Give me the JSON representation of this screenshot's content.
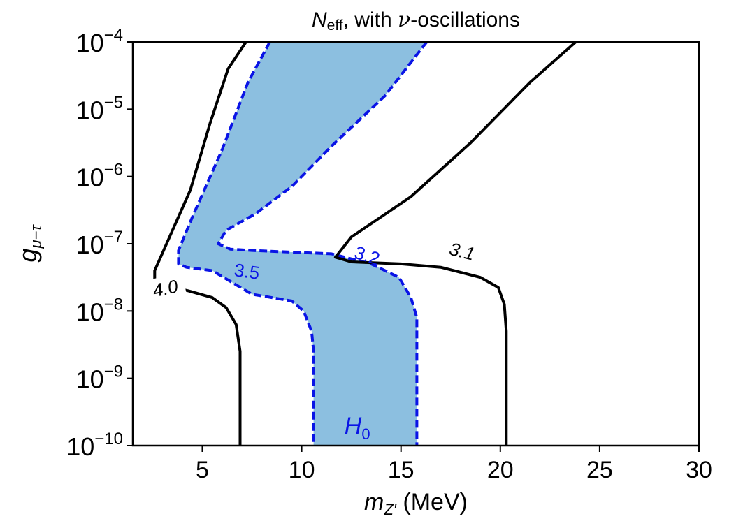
{
  "chart_data": {
    "type": "contour",
    "title": {
      "main": "N",
      "sub": "eff",
      "rest": ", with ",
      "greek": "ν",
      "tail": "-oscillations"
    },
    "xlabel": {
      "main": "m",
      "sub": "Z′",
      "rest": " (MeV)"
    },
    "ylabel": {
      "main": "g",
      "sub": "μ−τ"
    },
    "xlim": [
      1.5,
      30
    ],
    "ylim_log10": [
      -10,
      -4
    ],
    "y_scale": "log",
    "x_ticks": [
      5,
      10,
      15,
      20,
      25,
      30
    ],
    "x_tick_labels": [
      "5",
      "10",
      "15",
      "20",
      "25",
      "30"
    ],
    "y_ticks_log10": [
      -4,
      -5,
      -6,
      -7,
      -8,
      -9,
      -10
    ],
    "y_tick_labels": [
      {
        "base": "10",
        "exp": "−4"
      },
      {
        "base": "10",
        "exp": "−5"
      },
      {
        "base": "10",
        "exp": "−6"
      },
      {
        "base": "10",
        "exp": "−7"
      },
      {
        "base": "10",
        "exp": "−8"
      },
      {
        "base": "10",
        "exp": "−9"
      },
      {
        "base": "10",
        "exp": "−10"
      }
    ],
    "colors": {
      "black": "#000000",
      "blue": "#0a14e6",
      "fill": "#8cbfe0"
    },
    "region": {
      "label_main": "H",
      "label_sub": "0",
      "label_at": {
        "x": 12.8,
        "y": -9.7
      },
      "boundary": [
        [
          10.6,
          -10
        ],
        [
          10.6,
          -8.6
        ],
        [
          10.5,
          -8.3
        ],
        [
          10.1,
          -8.0
        ],
        [
          9.5,
          -7.85
        ],
        [
          7.5,
          -7.75
        ],
        [
          5.5,
          -7.4
        ],
        [
          4.2,
          -7.35
        ],
        [
          3.8,
          -7.3
        ],
        [
          3.8,
          -7.1
        ],
        [
          4.5,
          -6.6
        ],
        [
          6.0,
          -5.6
        ],
        [
          7.3,
          -4.6
        ],
        [
          8.4,
          -4
        ],
        [
          16.3,
          -4
        ],
        [
          14.2,
          -4.8
        ],
        [
          11.5,
          -5.55
        ],
        [
          9.5,
          -6.15
        ],
        [
          7.7,
          -6.55
        ],
        [
          6.2,
          -6.8
        ],
        [
          5.8,
          -7.0
        ],
        [
          6.4,
          -7.08
        ],
        [
          7.5,
          -7.1
        ],
        [
          11.5,
          -7.15
        ],
        [
          13.5,
          -7.3
        ],
        [
          14.9,
          -7.5
        ],
        [
          15.5,
          -7.8
        ],
        [
          15.8,
          -8.1
        ],
        [
          15.8,
          -10
        ]
      ]
    },
    "contours": [
      {
        "label": "3.2",
        "color": "blue",
        "dashed": true,
        "label_at": {
          "x": 13.2,
          "y": -7.16
        },
        "label_rotate": 18,
        "points": [
          [
            16.3,
            -4
          ],
          [
            14.2,
            -4.8
          ],
          [
            11.5,
            -5.55
          ],
          [
            9.5,
            -6.15
          ],
          [
            7.7,
            -6.55
          ],
          [
            6.2,
            -6.8
          ],
          [
            5.8,
            -7.0
          ],
          [
            6.4,
            -7.08
          ],
          [
            7.5,
            -7.1
          ],
          [
            11.5,
            -7.15
          ],
          [
            13.5,
            -7.3
          ],
          [
            14.9,
            -7.5
          ],
          [
            15.5,
            -7.8
          ],
          [
            15.8,
            -8.1
          ],
          [
            15.8,
            -10
          ]
        ]
      },
      {
        "label": "3.5",
        "color": "blue",
        "dashed": true,
        "label_at": {
          "x": 7.2,
          "y": -7.4
        },
        "label_rotate": 8,
        "points": [
          [
            8.4,
            -4
          ],
          [
            7.3,
            -4.6
          ],
          [
            6.0,
            -5.6
          ],
          [
            4.5,
            -6.6
          ],
          [
            3.8,
            -7.1
          ],
          [
            3.8,
            -7.3
          ],
          [
            4.2,
            -7.35
          ],
          [
            5.5,
            -7.4
          ],
          [
            7.5,
            -7.75
          ],
          [
            9.5,
            -7.85
          ],
          [
            10.1,
            -8.0
          ],
          [
            10.5,
            -8.3
          ],
          [
            10.6,
            -8.6
          ],
          [
            10.6,
            -10
          ]
        ]
      },
      {
        "label": "4.0",
        "color": "black",
        "dashed": false,
        "label_at": {
          "x": 3.2,
          "y": -7.65
        },
        "label_rotate": -12,
        "points": [
          [
            7.2,
            -4
          ],
          [
            6.3,
            -4.4
          ],
          [
            5.4,
            -5.2
          ],
          [
            4.4,
            -6.2
          ],
          [
            3.2,
            -7.0
          ],
          [
            2.6,
            -7.4
          ],
          [
            2.6,
            -7.55
          ],
          [
            2.8,
            -7.6
          ],
          [
            4.3,
            -7.7
          ],
          [
            5.5,
            -7.8
          ],
          [
            6.2,
            -7.95
          ],
          [
            6.7,
            -8.2
          ],
          [
            6.9,
            -8.6
          ],
          [
            6.9,
            -10
          ]
        ]
      },
      {
        "label": "3.1",
        "color": "black",
        "dashed": false,
        "label_at": {
          "x": 18.0,
          "y": -7.1
        },
        "label_rotate": 14,
        "points": [
          [
            23.8,
            -4
          ],
          [
            21.5,
            -4.6
          ],
          [
            18.5,
            -5.5
          ],
          [
            15.5,
            -6.3
          ],
          [
            12.5,
            -6.9
          ],
          [
            11.7,
            -7.2
          ],
          [
            12.5,
            -7.27
          ],
          [
            15.0,
            -7.3
          ],
          [
            17.0,
            -7.35
          ],
          [
            19.0,
            -7.5
          ],
          [
            19.9,
            -7.65
          ],
          [
            20.2,
            -7.9
          ],
          [
            20.3,
            -8.3
          ],
          [
            20.3,
            -10
          ]
        ]
      }
    ]
  }
}
